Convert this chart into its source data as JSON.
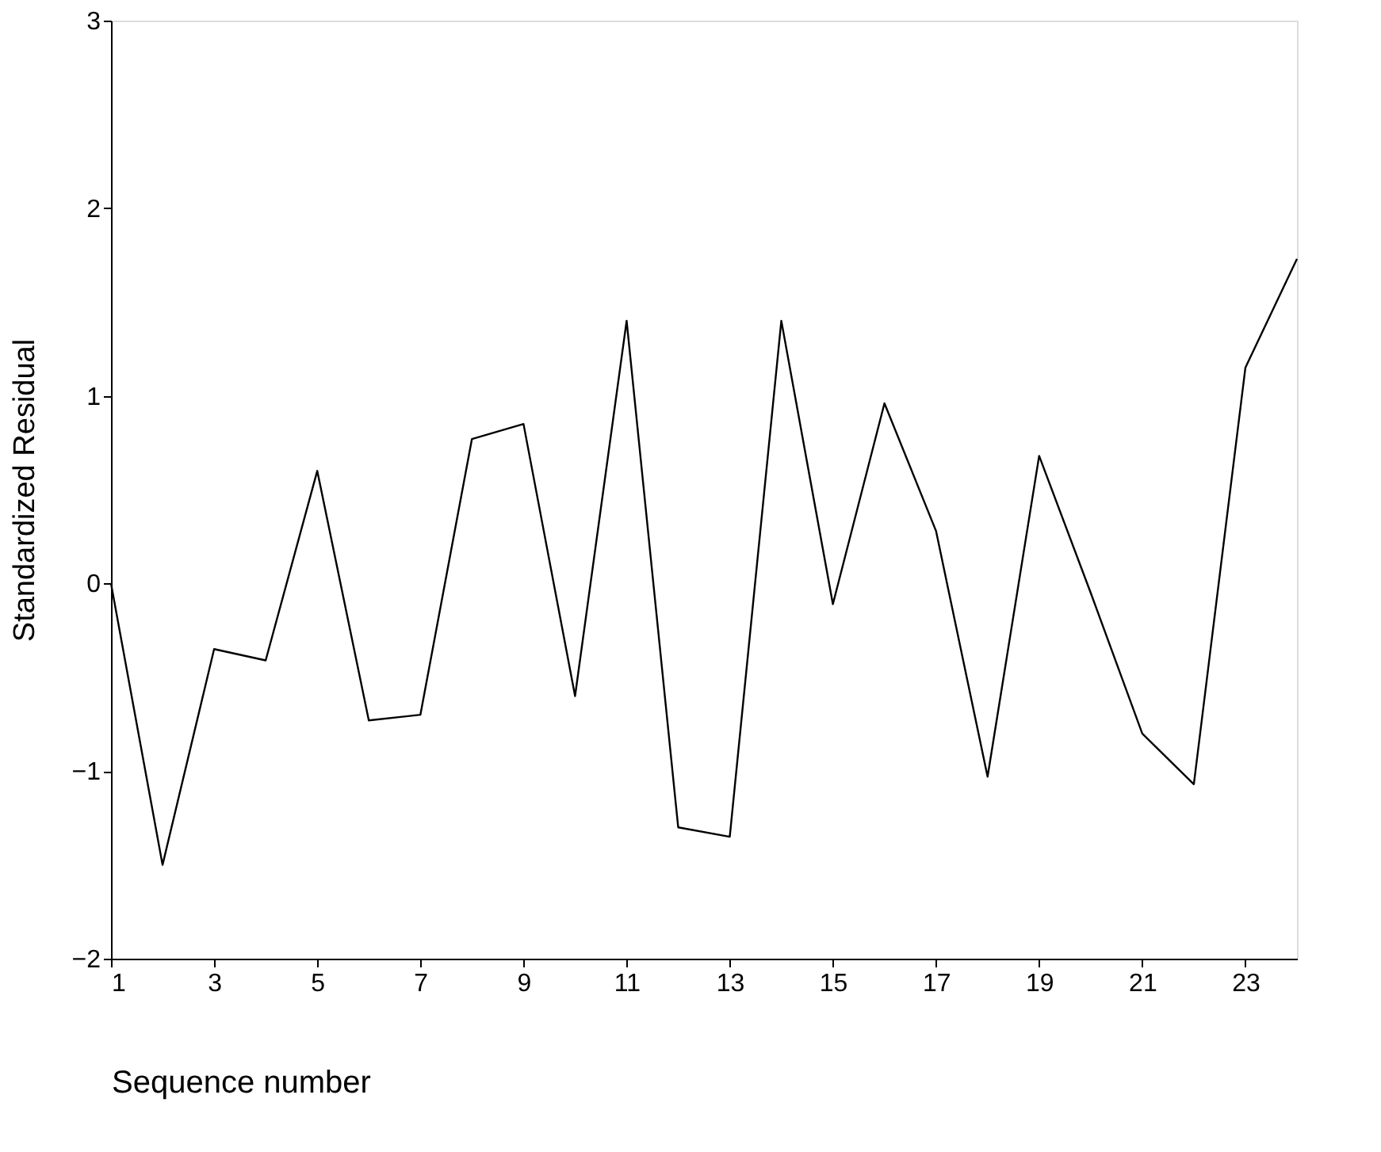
{
  "chart_data": {
    "type": "line",
    "xlabel": "Sequence number",
    "ylabel": "Standardized Residual",
    "x": [
      1,
      2,
      3,
      4,
      5,
      6,
      7,
      8,
      9,
      10,
      11,
      12,
      13,
      14,
      15,
      16,
      17,
      18,
      19,
      20,
      21,
      22,
      23,
      24
    ],
    "series": [
      {
        "color": "#000000",
        "values": [
          0.0,
          -1.5,
          -0.35,
          -0.41,
          0.6,
          -0.73,
          -0.7,
          0.77,
          0.85,
          -0.6,
          1.4,
          -1.3,
          -1.35,
          1.4,
          -0.11,
          0.96,
          0.28,
          -1.03,
          0.68,
          -0.05,
          -0.8,
          -1.07,
          1.15,
          1.73
        ]
      }
    ],
    "xlim": [
      1,
      24
    ],
    "xticks": [
      1,
      3,
      5,
      7,
      9,
      11,
      13,
      15,
      17,
      19,
      21,
      23
    ],
    "ylim": [
      -2,
      3
    ],
    "yticks": [
      -2,
      -1,
      0,
      1,
      2,
      3
    ],
    "grid": false,
    "legend": false,
    "marker": "none",
    "line_style": "solid"
  }
}
